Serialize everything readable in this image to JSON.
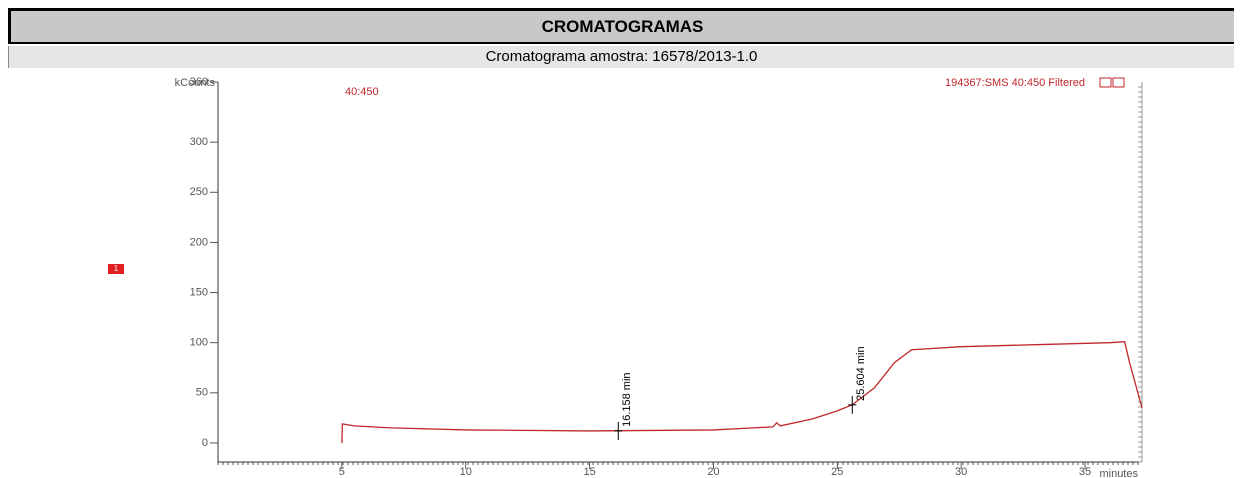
{
  "header": {
    "title": "CROMATOGRAMAS",
    "subtitle": "Cromatograma amostra: 16578/2013-1.0"
  },
  "chart_data": {
    "type": "line",
    "y_label": "kCounts",
    "x_label": "minutes",
    "trace_label": "40:450",
    "file_label": "194367:SMS 40:450 Filtered",
    "marker_label": "1",
    "xlim": [
      0,
      37.3
    ],
    "xticks": [
      5,
      10,
      15,
      20,
      25,
      30,
      35
    ],
    "ylim": [
      -19,
      360
    ],
    "yticks": [
      0,
      50,
      100,
      150,
      200,
      250,
      300,
      360
    ],
    "series": [
      {
        "name": "40:450",
        "color": "#c0262b",
        "x": [
          5.0,
          5.02,
          5.5,
          7,
          10,
          15,
          20,
          22.4,
          22.55,
          22.7,
          24,
          25,
          25.6,
          26.5,
          27.3,
          28,
          30,
          33,
          36,
          36.6,
          36.8,
          37.3
        ],
        "values": [
          0,
          19,
          17,
          15,
          13,
          12,
          13,
          16,
          20,
          17,
          24,
          32,
          38,
          55,
          80,
          93,
          96,
          98,
          100,
          101,
          80,
          35
        ]
      }
    ],
    "peaks": [
      {
        "x": 16.158,
        "y": 12,
        "label": "16.158 min"
      },
      {
        "x": 25.604,
        "y": 38,
        "label": "25.604 min"
      }
    ]
  }
}
